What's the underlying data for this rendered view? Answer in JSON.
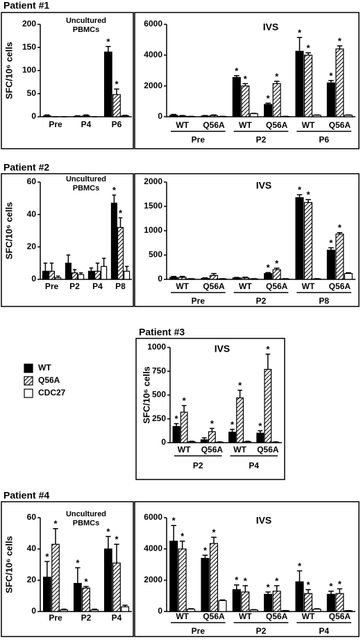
{
  "legend": [
    {
      "name": "WT",
      "color": "#000000",
      "pattern": "solid"
    },
    {
      "name": "Q56A",
      "color": "#000000",
      "pattern": "hatch"
    },
    {
      "name": "CDC27",
      "color": "#ffffff",
      "pattern": "solid"
    }
  ],
  "chart_data": [
    {
      "type": "bar",
      "title": "Patient #1",
      "subtitle": [
        "Uncultured",
        "PBMCs"
      ],
      "y_label": "SFC/10⁶ cells",
      "categories": [
        "Pre",
        "P4",
        "P6"
      ],
      "ylim": [
        0,
        200
      ],
      "yticks": [
        0,
        50,
        100,
        150,
        200
      ],
      "series": [
        {
          "values": [
            2,
            1,
            140
          ],
          "errors": [
            2,
            1,
            12
          ],
          "labels": [
            null,
            null,
            "*"
          ]
        },
        {
          "values": [
            0,
            2,
            48
          ],
          "errors": [
            0,
            2,
            12
          ],
          "labels": [
            null,
            null,
            "*"
          ]
        },
        {
          "values": [
            0,
            0,
            2
          ],
          "errors": [
            0,
            0,
            1
          ],
          "labels": [
            null,
            null,
            null
          ]
        }
      ]
    },
    {
      "type": "bar",
      "subtitle": [
        "IVS"
      ],
      "categories": [
        "WT",
        "Q56A",
        "WT",
        "Q56A",
        "WT",
        "Q56A"
      ],
      "groups": [
        "Pre",
        "P2",
        "P6"
      ],
      "ylim": [
        0,
        6000
      ],
      "yticks": [
        0,
        2000,
        4000,
        6000
      ],
      "series": [
        {
          "values": [
            100,
            50,
            2550,
            800,
            4250,
            2200
          ],
          "errors": [
            50,
            30,
            120,
            80,
            900,
            150
          ],
          "labels": [
            null,
            null,
            "*",
            "*",
            "*",
            "*"
          ]
        },
        {
          "values": [
            50,
            80,
            2000,
            2150,
            4000,
            4400
          ],
          "errors": [
            30,
            40,
            150,
            150,
            150,
            200
          ],
          "labels": [
            null,
            null,
            "*",
            "*",
            "*",
            "*"
          ]
        },
        {
          "values": [
            20,
            20,
            200,
            20,
            100,
            100
          ],
          "errors": [
            10,
            10,
            20,
            10,
            20,
            20
          ],
          "labels": [
            null,
            null,
            null,
            null,
            null,
            null
          ]
        }
      ]
    },
    {
      "type": "bar",
      "title": "Patient #2",
      "subtitle": [
        "Uncultured",
        "PBMCs"
      ],
      "y_label": "SFC/10⁶ cells",
      "categories": [
        "Pre",
        "P2",
        "P4",
        "P8"
      ],
      "ylim": [
        0,
        60
      ],
      "yticks": [
        0,
        20,
        40,
        60
      ],
      "series": [
        {
          "values": [
            5,
            10,
            5,
            47
          ],
          "errors": [
            5,
            5,
            2,
            5
          ],
          "labels": [
            null,
            null,
            null,
            "*"
          ]
        },
        {
          "values": [
            5,
            4,
            5,
            32
          ],
          "errors": [
            5,
            2,
            5,
            6
          ],
          "labels": [
            null,
            null,
            null,
            "*"
          ]
        },
        {
          "values": [
            1,
            3,
            8,
            5
          ],
          "errors": [
            1,
            1,
            5,
            3
          ],
          "labels": [
            null,
            null,
            null,
            null
          ]
        }
      ]
    },
    {
      "type": "bar",
      "subtitle": [
        "IVS"
      ],
      "categories": [
        "WT",
        "Q56A",
        "WT",
        "Q56A",
        "WT",
        "Q56A"
      ],
      "groups": [
        "Pre",
        "P2",
        "P8"
      ],
      "ylim": [
        0,
        2000
      ],
      "yticks": [
        0,
        500,
        1000,
        1500,
        2000
      ],
      "series": [
        {
          "values": [
            40,
            20,
            30,
            120,
            1680,
            600
          ],
          "errors": [
            20,
            10,
            10,
            20,
            60,
            50
          ],
          "labels": [
            null,
            null,
            null,
            "*",
            "*",
            "*"
          ]
        },
        {
          "values": [
            40,
            80,
            30,
            200,
            1580,
            930
          ],
          "errors": [
            20,
            40,
            15,
            30,
            60,
            30
          ],
          "labels": [
            null,
            null,
            null,
            "*",
            "*",
            "*"
          ]
        },
        {
          "values": [
            10,
            10,
            10,
            10,
            10,
            120
          ],
          "errors": [
            5,
            5,
            5,
            5,
            5,
            15
          ],
          "labels": [
            null,
            null,
            null,
            null,
            null,
            null
          ]
        }
      ]
    },
    {
      "type": "bar",
      "title": "Patient #3",
      "subtitle": [
        "IVS"
      ],
      "y_label": "SFC/10⁶ cells",
      "categories": [
        "WT",
        "Q56A",
        "WT",
        "Q56A"
      ],
      "groups": [
        "P2",
        "P4"
      ],
      "ylim": [
        0,
        1000
      ],
      "yticks": [
        0,
        250,
        500,
        750,
        1000
      ],
      "series": [
        {
          "values": [
            170,
            30,
            110,
            100
          ],
          "errors": [
            30,
            20,
            30,
            25
          ],
          "labels": [
            "*",
            null,
            "*",
            "*"
          ]
        },
        {
          "values": [
            320,
            115,
            470,
            770
          ],
          "errors": [
            70,
            35,
            80,
            160
          ],
          "labels": [
            "*",
            "*",
            "*",
            "*"
          ]
        },
        {
          "values": [
            10,
            5,
            10,
            5
          ],
          "errors": [
            5,
            3,
            5,
            3
          ],
          "labels": [
            null,
            null,
            null,
            null
          ]
        }
      ]
    },
    {
      "type": "bar",
      "title": "Patient #4",
      "subtitle": [
        "Uncultured",
        "PBMCs"
      ],
      "y_label": "SFC/10⁶ cells",
      "categories": [
        "Pre",
        "P2",
        "P4"
      ],
      "ylim": [
        0,
        60
      ],
      "yticks": [
        0,
        20,
        40,
        60
      ],
      "series": [
        {
          "values": [
            22,
            18,
            40
          ],
          "errors": [
            10,
            10,
            8
          ],
          "labels": [
            "*",
            "*",
            "*"
          ]
        },
        {
          "values": [
            43,
            15,
            31
          ],
          "errors": [
            10,
            1,
            12
          ],
          "labels": [
            "*",
            "*",
            "*"
          ]
        },
        {
          "values": [
            1,
            1,
            3
          ],
          "errors": [
            0.5,
            0.5,
            1
          ],
          "labels": [
            null,
            null,
            null
          ]
        }
      ]
    },
    {
      "type": "bar",
      "subtitle": [
        "IVS"
      ],
      "categories": [
        "WT",
        "Q56A",
        "WT",
        "Q56A",
        "WT",
        "Q56A"
      ],
      "groups": [
        "Pre",
        "P2",
        "P4"
      ],
      "ylim": [
        0,
        6000
      ],
      "yticks": [
        0,
        2000,
        4000,
        6000
      ],
      "series": [
        {
          "values": [
            4500,
            3400,
            1400,
            1100,
            1900,
            1100
          ],
          "errors": [
            1000,
            200,
            300,
            150,
            700,
            200
          ],
          "labels": [
            "*",
            "*",
            "*",
            "*",
            "*",
            "*"
          ]
        },
        {
          "values": [
            4000,
            4350,
            1250,
            1300,
            1150,
            1150
          ],
          "errors": [
            500,
            400,
            400,
            350,
            250,
            300
          ],
          "labels": [
            "*",
            "*",
            "*",
            "*",
            "*",
            "*"
          ]
        },
        {
          "values": [
            150,
            700,
            100,
            50,
            150,
            50
          ],
          "errors": [
            30,
            40,
            20,
            10,
            30,
            10
          ],
          "labels": [
            null,
            null,
            null,
            null,
            null,
            null
          ]
        }
      ]
    }
  ]
}
